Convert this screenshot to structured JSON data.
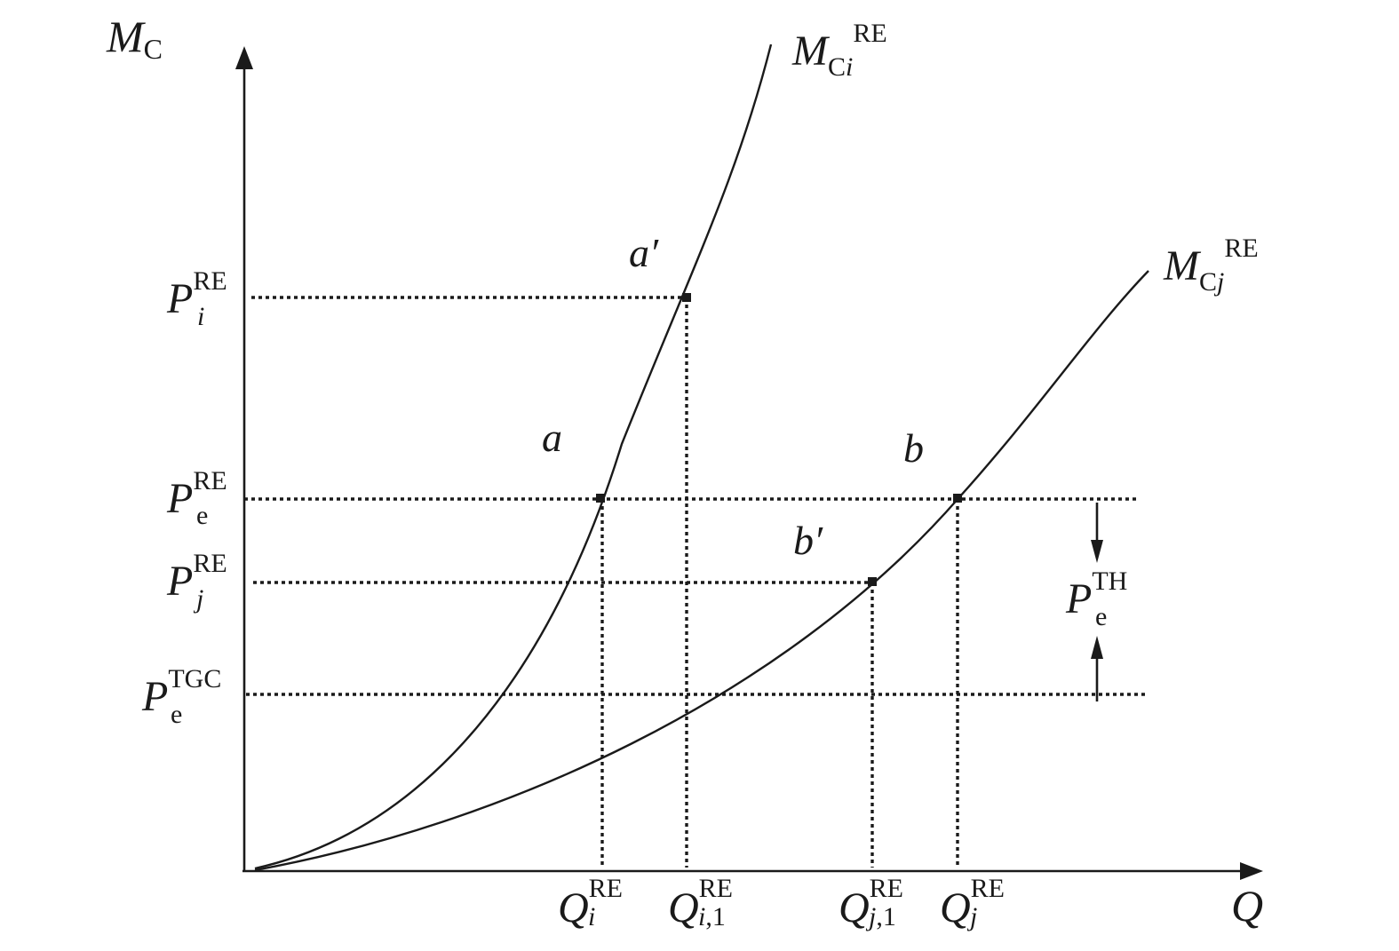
{
  "axes": {
    "y": {
      "main": "M",
      "sub": "C"
    },
    "x": {
      "main": "Q"
    }
  },
  "curves": {
    "i": {
      "main": "M",
      "sub": "C",
      "sub_italic": "i",
      "sup": "RE"
    },
    "j": {
      "main": "M",
      "sub": "C",
      "sub_italic": "j",
      "sup": "RE"
    }
  },
  "price_levels": {
    "Pi": {
      "main": "P",
      "sub": "i",
      "sup": "RE"
    },
    "Pe": {
      "main": "P",
      "sub": "e",
      "sup": "RE"
    },
    "Pj": {
      "main": "P",
      "sub": "j",
      "sup": "RE"
    },
    "Ptgc": {
      "main": "P",
      "sub": "e",
      "sup": "TGC"
    }
  },
  "quantity_levels": {
    "Qi": {
      "main": "Q",
      "sub": "i",
      "sup": "RE"
    },
    "Qi1": {
      "main": "Q",
      "sub_italic": "i",
      "sub_tail": ",1",
      "sup": "RE"
    },
    "Qj1": {
      "main": "Q",
      "sub_italic": "j",
      "sub_tail": ",1",
      "sup": "RE"
    },
    "Qj": {
      "main": "Q",
      "sub": "j",
      "sup": "RE"
    }
  },
  "points": {
    "a": "a",
    "a_prime": "a′",
    "b": "b",
    "b_prime": "b′"
  },
  "gap_label": {
    "main": "P",
    "sub": "e",
    "sup": "TH"
  }
}
